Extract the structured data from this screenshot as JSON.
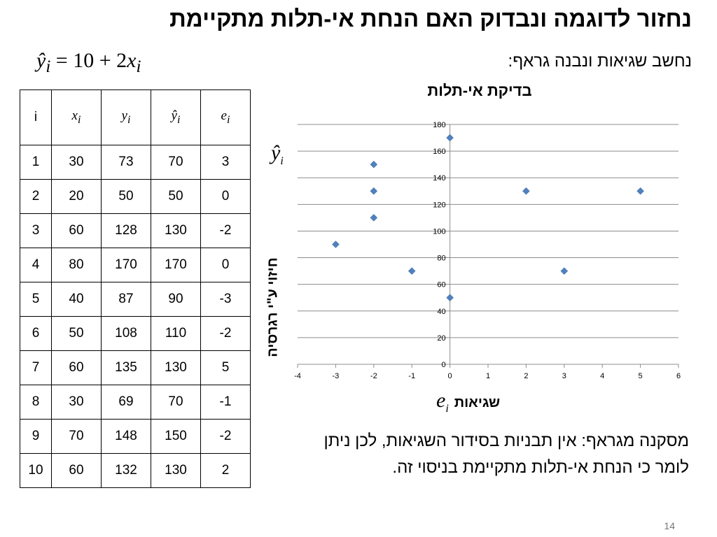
{
  "slide": {
    "title": "נחזור לדוגמה ונבדוק האם הנחת אי-תלות מתקיימת",
    "formula": {
      "yhat": "ŷ",
      "sub_i": "i",
      "eq": " = 10 + 2",
      "x": "x"
    },
    "intro": "נחשב שגיאות ונבנה גראף:",
    "conclusion": "מסקנה מגראף: אין תבניות בסידור השגיאות, לכן ניתן לומר כי הנחת אי-תלות מתקיימת בניסוי זה.",
    "page_number": "14"
  },
  "table": {
    "headers": {
      "i": "i",
      "x": "x",
      "y": "y",
      "yhat": "ŷ",
      "e": "e",
      "sub": "i"
    },
    "rows": [
      [
        "1",
        "30",
        "73",
        "70",
        "3"
      ],
      [
        "2",
        "20",
        "50",
        "50",
        "0"
      ],
      [
        "3",
        "60",
        "128",
        "130",
        "-2"
      ],
      [
        "4",
        "80",
        "170",
        "170",
        "0"
      ],
      [
        "5",
        "40",
        "87",
        "90",
        "-3"
      ],
      [
        "6",
        "50",
        "108",
        "110",
        "-2"
      ],
      [
        "7",
        "60",
        "135",
        "130",
        "5"
      ],
      [
        "8",
        "30",
        "69",
        "70",
        "-1"
      ],
      [
        "9",
        "70",
        "148",
        "150",
        "-2"
      ],
      [
        "10",
        "60",
        "132",
        "130",
        "2"
      ]
    ]
  },
  "chart_data": {
    "type": "scatter",
    "title": "בדיקת אי-תלות",
    "xlabel": "שגיאות",
    "xlabel_symbol": "e",
    "ylabel": "חיזוי ע\"י רגרסיה",
    "ylabel_symbol": "ŷ",
    "xlim": [
      -4,
      6
    ],
    "ylim": [
      0,
      180
    ],
    "x_ticks": [
      "-4",
      "-3",
      "-2",
      "-1",
      "0",
      "1",
      "2",
      "3",
      "4",
      "5",
      "6"
    ],
    "y_ticks": [
      "0",
      "20",
      "40",
      "60",
      "80",
      "100",
      "120",
      "140",
      "160",
      "180"
    ],
    "grid": "horizontal",
    "marker_color": "#4F81BD",
    "points": [
      {
        "x": 3,
        "y": 70
      },
      {
        "x": 0,
        "y": 50
      },
      {
        "x": -2,
        "y": 130
      },
      {
        "x": 0,
        "y": 170
      },
      {
        "x": -3,
        "y": 90
      },
      {
        "x": -2,
        "y": 110
      },
      {
        "x": 5,
        "y": 130
      },
      {
        "x": -1,
        "y": 70
      },
      {
        "x": -2,
        "y": 150
      },
      {
        "x": 2,
        "y": 130
      }
    ]
  }
}
